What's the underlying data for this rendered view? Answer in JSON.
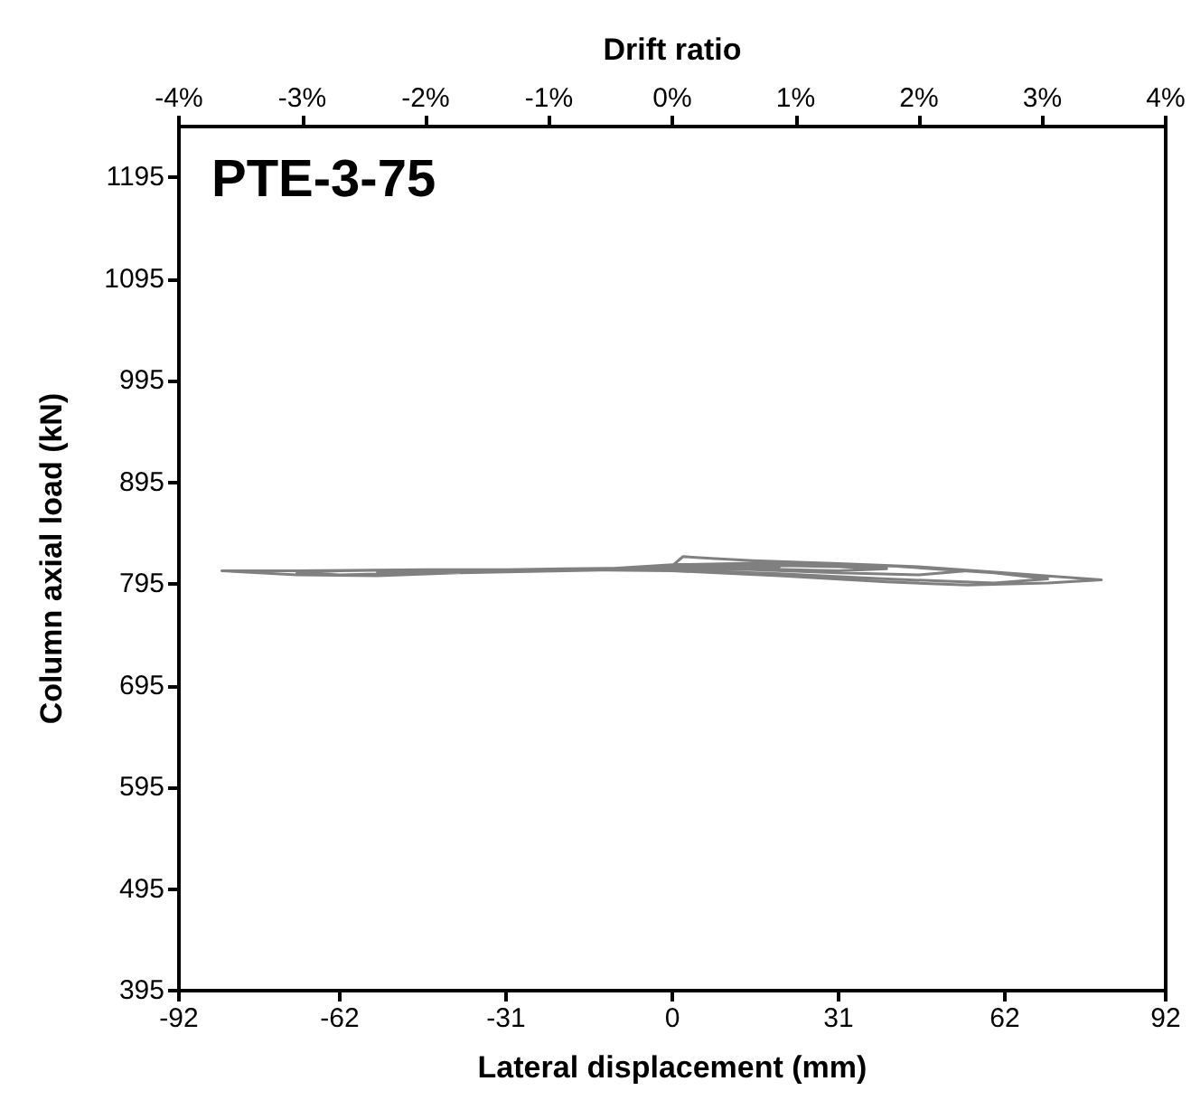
{
  "chart_data": {
    "type": "line",
    "title": "PTE-3-75",
    "xlabel": "Lateral displacement (mm)",
    "ylabel": "Column axial load (kN)",
    "x2label": "Drift ratio",
    "xlim": [
      -92,
      92
    ],
    "xticks": [
      -92,
      -62,
      -31,
      0,
      31,
      62,
      92
    ],
    "x2lim": [
      -4,
      4
    ],
    "x2ticks": [
      {
        "value": -4,
        "label": "-4%"
      },
      {
        "value": -3,
        "label": "-3%"
      },
      {
        "value": -2,
        "label": "-2%"
      },
      {
        "value": -1,
        "label": "-1%"
      },
      {
        "value": 0,
        "label": "0%"
      },
      {
        "value": 1,
        "label": "1%"
      },
      {
        "value": 2,
        "label": "2%"
      },
      {
        "value": 3,
        "label": "3%"
      },
      {
        "value": 4,
        "label": "4%"
      }
    ],
    "ylim": [
      395,
      1245
    ],
    "yticks": [
      395,
      495,
      595,
      695,
      795,
      895,
      995,
      1095,
      1195
    ],
    "grid": false,
    "marker": "none",
    "line_style": "solid",
    "series": [
      {
        "color": "#808080",
        "x": [
          0,
          10,
          20,
          10,
          0,
          -10,
          -20,
          -10,
          0,
          20,
          31,
          40,
          31,
          15,
          0,
          -20,
          -31,
          -40,
          -31,
          -15,
          0,
          2,
          8,
          15,
          31,
          46,
          55,
          46,
          31,
          15,
          0,
          -15,
          -31,
          -46,
          -55,
          -46,
          -31,
          -15,
          0,
          20,
          40,
          60,
          70,
          60,
          40,
          20,
          0,
          -20,
          -46,
          -62,
          -70,
          -62,
          -46,
          -20,
          0,
          20,
          46,
          62,
          80,
          70,
          55,
          40,
          20,
          0,
          -20,
          -46,
          -70,
          -84,
          -70,
          -55,
          -40,
          -20,
          0
        ],
        "values": [
          812,
          814,
          812,
          813,
          812,
          810,
          809,
          810,
          813,
          813,
          812,
          810,
          808,
          810,
          811,
          810,
          809,
          808,
          808,
          809,
          813,
          822,
          820,
          818,
          815,
          812,
          808,
          804,
          806,
          809,
          811,
          810,
          809,
          808,
          807,
          806,
          807,
          809,
          814,
          816,
          813,
          806,
          800,
          796,
          800,
          805,
          809,
          809,
          809,
          808,
          806,
          804,
          806,
          808,
          812,
          815,
          812,
          806,
          799,
          796,
          794,
          797,
          803,
          808,
          809,
          809,
          808,
          808,
          804,
          803,
          806,
          808,
          810
        ]
      }
    ]
  }
}
